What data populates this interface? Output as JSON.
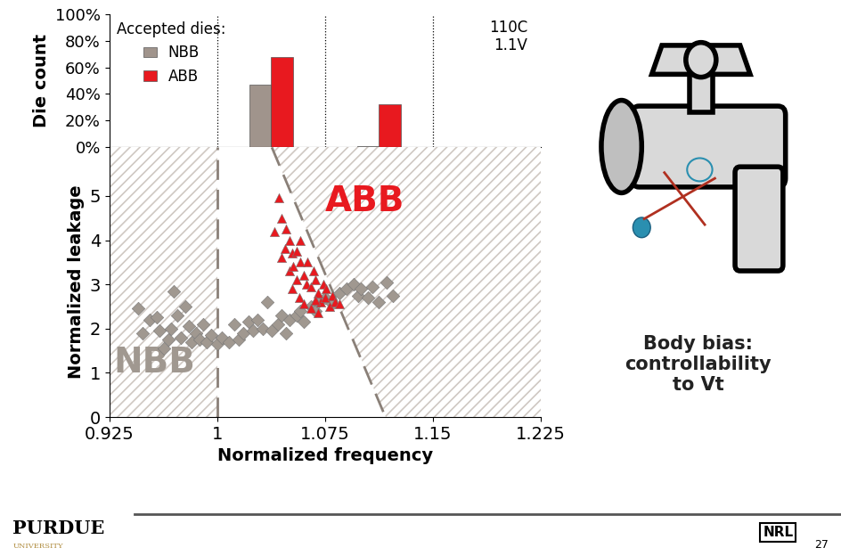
{
  "chart_data": [
    {
      "type": "bar",
      "y_label": "Die count",
      "bins": [
        0.925,
        1,
        1.075,
        1.15,
        1.225
      ],
      "series": [
        {
          "name": "NBB",
          "color": "#a0948c",
          "values": [
            0,
            47,
            1,
            0
          ]
        },
        {
          "name": "ABB",
          "color": "#e8191f",
          "values": [
            0,
            68,
            32,
            0
          ]
        }
      ],
      "xlim": [
        0.925,
        1.225
      ],
      "ylim": [
        0,
        100
      ],
      "yticks": [
        {
          "value": 0,
          "label": "0%"
        },
        {
          "value": 20,
          "label": "20%"
        },
        {
          "value": 40,
          "label": "40%"
        },
        {
          "value": 60,
          "label": "60%"
        },
        {
          "value": 80,
          "label": "80%"
        },
        {
          "value": 100,
          "label": "100%"
        }
      ],
      "tick_labels": "y",
      "legend": "upper left",
      "legend_title": "Accepted dies:",
      "annotations": [
        "110C",
        "1.1V"
      ]
    },
    {
      "type": "scatter",
      "x_label": "Normalized frequency",
      "y_label": "Normalized leakage",
      "xlim": [
        0.925,
        1.225
      ],
      "ylim": [
        0,
        6.1
      ],
      "xticks": [
        0.925,
        1,
        1.075,
        1.15,
        1.225
      ],
      "yticks": [
        0,
        1,
        2,
        3,
        4,
        5
      ],
      "regions": [
        {
          "name": "NBB",
          "color": "#a09890",
          "boundary": [
            [
              1,
              0
            ],
            [
              1,
              6.1
            ]
          ]
        },
        {
          "name": "ABB",
          "color": "#e8191f",
          "boundary": [
            [
              1.038,
              6.1
            ],
            [
              1.117,
              0
            ]
          ]
        }
      ],
      "series": [
        {
          "name": "NBB",
          "color": "#a09890",
          "marker": "diamond",
          "x": [
            0.945,
            0.948,
            0.953,
            0.958,
            0.96,
            0.963,
            0.966,
            0.968,
            0.97,
            0.972,
            0.975,
            0.978,
            0.98,
            0.982,
            0.985,
            0.988,
            0.99,
            0.993,
            0.996,
            1.0,
            1.003,
            1.008,
            1.012,
            1.015,
            1.018,
            1.022,
            1.025,
            1.028,
            1.032,
            1.035,
            1.038,
            1.042,
            1.045,
            1.048,
            1.05,
            1.055,
            1.058,
            1.06,
            1.065,
            1.068,
            1.07,
            1.075,
            1.08,
            1.085,
            1.09,
            1.095,
            1.098,
            1.1,
            1.105,
            1.108,
            1.112,
            1.118,
            1.122
          ],
          "values": [
            2.45,
            1.9,
            2.2,
            2.25,
            1.95,
            1.55,
            1.75,
            2.0,
            2.85,
            2.3,
            1.8,
            2.5,
            2.05,
            1.7,
            1.9,
            1.75,
            2.1,
            1.7,
            1.85,
            1.65,
            1.8,
            1.7,
            2.1,
            1.75,
            1.9,
            2.15,
            1.95,
            2.2,
            2.0,
            2.6,
            1.95,
            2.1,
            2.3,
            1.9,
            2.2,
            2.3,
            2.4,
            2.15,
            2.5,
            2.4,
            2.6,
            2.7,
            2.55,
            2.8,
            2.9,
            3.0,
            2.75,
            2.9,
            2.7,
            2.95,
            2.6,
            3.05,
            2.75
          ]
        },
        {
          "name": "ABB",
          "color": "#e8191f",
          "marker": "triangle",
          "x": [
            1.043,
            1.045,
            1.04,
            1.048,
            1.05,
            1.052,
            1.045,
            1.055,
            1.058,
            1.05,
            1.06,
            1.055,
            1.062,
            1.052,
            1.065,
            1.057,
            1.068,
            1.07,
            1.06,
            1.072,
            1.075,
            1.065,
            1.078,
            1.08,
            1.07,
            1.082,
            1.063,
            1.067,
            1.053,
            1.047,
            1.058,
            1.074,
            1.076,
            1.085,
            1.068
          ],
          "values": [
            4.95,
            4.5,
            4.2,
            4.25,
            4.0,
            3.7,
            3.6,
            3.75,
            3.5,
            3.3,
            3.2,
            3.1,
            3.0,
            2.9,
            2.95,
            2.7,
            3.1,
            2.8,
            2.55,
            2.6,
            2.7,
            2.45,
            2.5,
            2.75,
            2.35,
            2.6,
            3.5,
            3.3,
            3.4,
            3.8,
            4.0,
            3.0,
            2.9,
            2.55,
            2.65
          ]
        }
      ]
    }
  ],
  "side_note": [
    "Body bias:",
    "controllability",
    "to Vt"
  ],
  "footer": {
    "logo": [
      "PURDUE",
      "UNIVERSITY"
    ],
    "right_logo": "NRL",
    "page": "27"
  }
}
